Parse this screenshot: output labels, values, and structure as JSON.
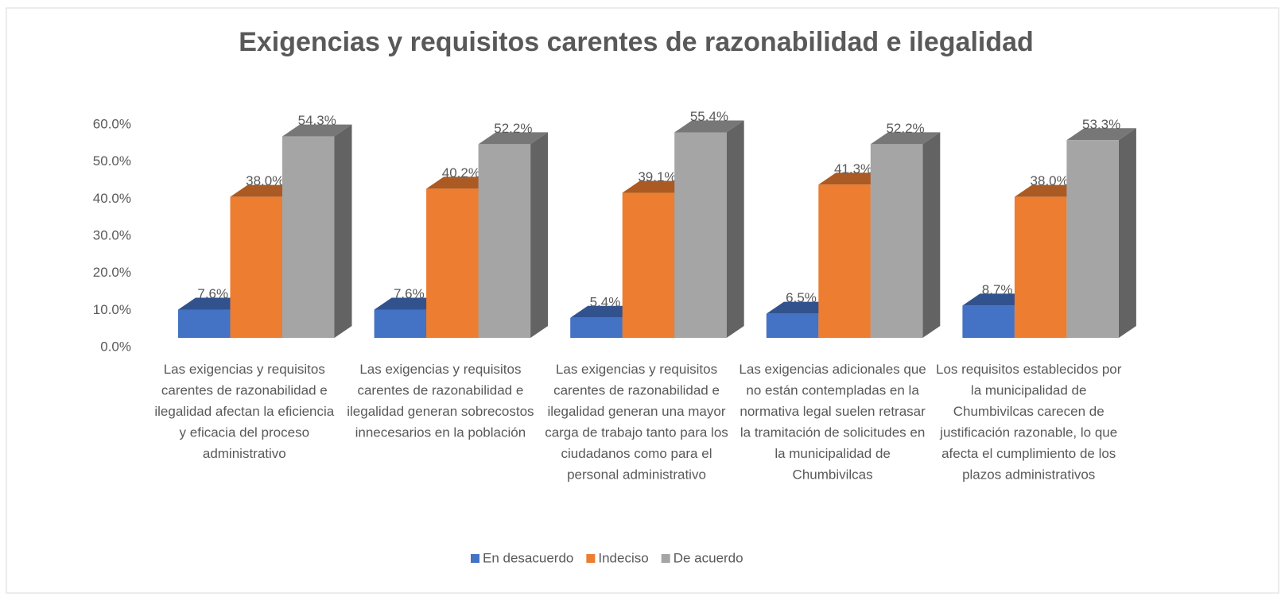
{
  "chart_data": {
    "type": "bar3d",
    "title": "Exigencias y requisitos carentes de razonabilidad e ilegalidad",
    "categories": [
      "Las exigencias y requisitos carentes de razonabilidad e ilegalidad afectan la eficiencia y eficacia del proceso administrativo",
      "Las exigencias y requisitos carentes de razonabilidad e ilegalidad generan sobrecostos innecesarios en la población",
      "Las exigencias y requisitos carentes de razonabilidad e ilegalidad generan una mayor carga de trabajo tanto para los ciudadanos como para el personal administrativo",
      "Las exigencias adicionales que no están contempladas en la normativa legal suelen retrasar la tramitación de solicitudes en la municipalidad de Chumbivilcas",
      "Los requisitos establecidos por la municipalidad de Chumbivilcas carecen de justificación razonable, lo que afecta el cumplimiento de los plazos administrativos"
    ],
    "series": [
      {
        "name": "En desacuerdo",
        "color": "#4472c4",
        "values": [
          7.6,
          7.6,
          5.4,
          6.5,
          8.7
        ],
        "value_labels": [
          "7.6%",
          "7.6%",
          "5.4%",
          "6.5%",
          "8.7%"
        ]
      },
      {
        "name": "Indeciso",
        "color": "#ed7d31",
        "values": [
          38.0,
          40.2,
          39.1,
          41.3,
          38.0
        ],
        "value_labels": [
          "38.0%",
          "40.2%",
          "39.1%",
          "41.3%",
          "38.0%"
        ]
      },
      {
        "name": "De acuerdo",
        "color": "#a5a5a5",
        "values": [
          54.3,
          52.2,
          55.4,
          52.2,
          53.3
        ],
        "value_labels": [
          "54.3%",
          "52.2%",
          "55.4%",
          "52.2%",
          "53.3%"
        ]
      }
    ],
    "ylim": [
      0,
      60
    ],
    "yticks": [
      {
        "value": 0,
        "label": "0.0%"
      },
      {
        "value": 10,
        "label": "10.0%"
      },
      {
        "value": 20,
        "label": "20.0%"
      },
      {
        "value": 30,
        "label": "30.0%"
      },
      {
        "value": 40,
        "label": "40.0%"
      },
      {
        "value": 50,
        "label": "50.0%"
      },
      {
        "value": 60,
        "label": "60.0%"
      }
    ],
    "legend": "bottom"
  }
}
